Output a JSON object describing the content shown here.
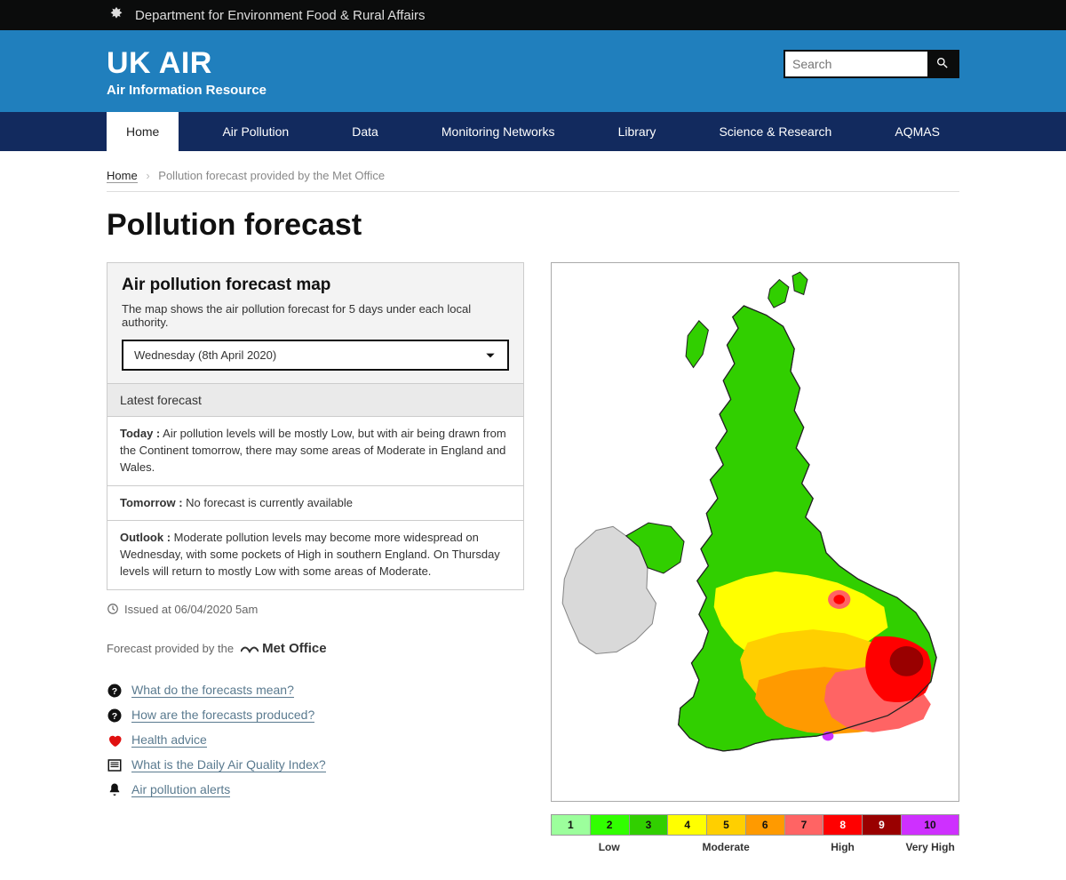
{
  "govbar": {
    "dept": "Department for Environment Food & Rural Affairs"
  },
  "brand": {
    "title": "UK AIR",
    "subtitle": "Air Information Resource"
  },
  "search": {
    "placeholder": "Search"
  },
  "nav": {
    "items": [
      "Home",
      "Air Pollution",
      "Data",
      "Monitoring Networks",
      "Library",
      "Science & Research",
      "AQMAS"
    ],
    "active_index": 0
  },
  "breadcrumb": {
    "home": "Home",
    "current": "Pollution forecast provided by the Met Office"
  },
  "page_title": "Pollution forecast",
  "panel": {
    "title": "Air pollution forecast map",
    "intro": "The map shows the air pollution forecast for 5 days under each local authority.",
    "selected_day": "Wednesday (8th April 2020)",
    "latest_heading": "Latest forecast",
    "rows": {
      "today_label": "Today :",
      "today_text": " Air pollution levels will be mostly Low, but with air being drawn from the Continent tomorrow, there may some areas of Moderate in England and Wales.",
      "tomorrow_label": "Tomorrow :",
      "tomorrow_text": " No forecast is currently available",
      "outlook_label": "Outlook :",
      "outlook_text": " Moderate pollution levels may become more widespread on Wednesday, with some pockets of High in southern England. On Thursday levels will return to mostly Low with some areas of Moderate."
    }
  },
  "issued": "Issued at 06/04/2020 5am",
  "provided_by": "Forecast provided by the",
  "met_office": "Met Office",
  "help": {
    "mean": "What do the forecasts mean?",
    "produced": "How are the forecasts produced?",
    "health": "Health advice",
    "daqi": "What is the Daily Air Quality Index?",
    "alerts": "Air pollution alerts"
  },
  "legend": {
    "colors": [
      "#9cff9c",
      "#31ff00",
      "#31cf00",
      "#ffff00",
      "#ffcf00",
      "#ff9a00",
      "#ff6464",
      "#ff0000",
      "#990000",
      "#ce30ff"
    ],
    "numbers": [
      "1",
      "2",
      "3",
      "4",
      "5",
      "6",
      "7",
      "8",
      "9",
      "10"
    ],
    "labels": {
      "low": "Low",
      "moderate": "Moderate",
      "high": "High",
      "veryhigh": "Very High"
    }
  },
  "map": {
    "bg": "#ffffff",
    "sea": "#ffffff",
    "border": "#888888",
    "ireland": "#d9d9d9",
    "ni": "#31cf00",
    "scotland": "#31cf00",
    "wales": "#31cf00",
    "low_green": "#31cf00",
    "mid_yellow_light": "#ffff00",
    "mid_yellow": "#ffcf00",
    "orange": "#ff9a00",
    "red_light": "#ff6464",
    "red": "#ff0000",
    "red_dark": "#990000",
    "purple": "#ce30ff"
  }
}
